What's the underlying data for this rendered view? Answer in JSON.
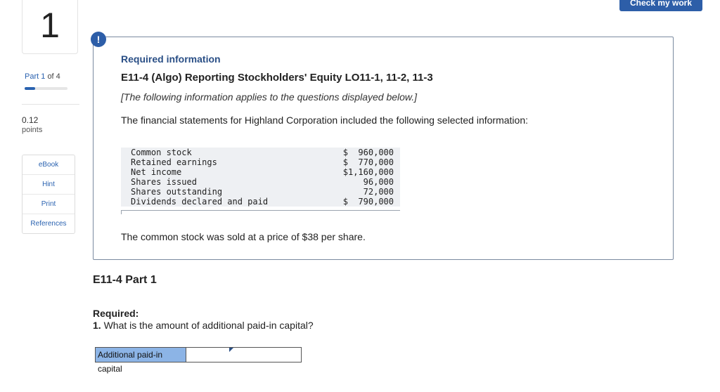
{
  "sidebar": {
    "question_number": "1",
    "part_prefix": "Part",
    "part_current": "1",
    "part_of": "of 4",
    "part_progress": 0.25,
    "points_value": "0.12",
    "points_label": "points",
    "tools": [
      {
        "label": "eBook"
      },
      {
        "label": "Hint"
      },
      {
        "label": "Print"
      },
      {
        "label": "References"
      }
    ]
  },
  "header": {
    "check_button": "Check my work"
  },
  "info": {
    "alert_symbol": "!",
    "required_information": "Required information",
    "title": "E11-4 (Algo) Reporting Stockholders' Equity LO11-1, 11-2, 11-3",
    "applies_note": "[The following information applies to the questions displayed below.]",
    "intro": "The financial statements for Highland  Corporation included the following selected information:",
    "table": [
      {
        "item": "Common stock",
        "value": "$  960,000"
      },
      {
        "item": "Retained earnings",
        "value": "$  770,000"
      },
      {
        "item": "Net income",
        "value": "$1,160,000"
      },
      {
        "item": "Shares issued",
        "value": "96,000"
      },
      {
        "item": "Shares outstanding",
        "value": "72,000"
      },
      {
        "item": "Dividends declared and paid",
        "value": "$  790,000"
      }
    ],
    "price_note": "The common stock was sold at a price of $38 per share."
  },
  "part": {
    "heading": "E11-4 Part 1",
    "required_label": "Required:",
    "question_number": "1.",
    "question_text": "What is the amount of additional paid-in capital?",
    "answer_label": "Additional paid-in capital",
    "answer_value": ""
  },
  "colors": {
    "accent": "#2d5ea8",
    "answer_label_bg": "#8cb4e6"
  }
}
